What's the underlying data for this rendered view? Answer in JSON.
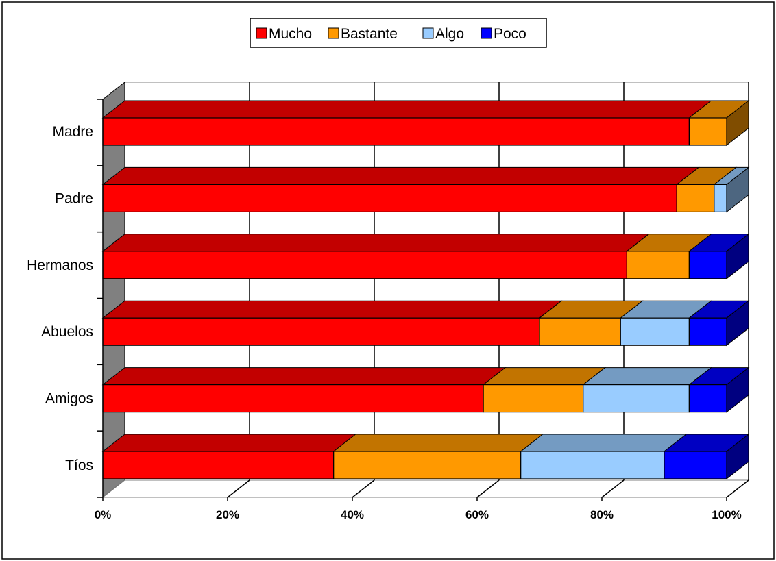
{
  "chart_data": {
    "type": "bar",
    "orientation": "horizontal",
    "stacked": "percent",
    "three_d": true,
    "categories": [
      "Madre",
      "Padre",
      "Hermanos",
      "Abuelos",
      "Amigos",
      "Tíos"
    ],
    "series": [
      {
        "name": "Mucho",
        "values": [
          94,
          92,
          84,
          70,
          61,
          37
        ],
        "color": "#FF0000"
      },
      {
        "name": "Bastante",
        "values": [
          6,
          6,
          10,
          13,
          16,
          30
        ],
        "color": "#FF9900"
      },
      {
        "name": "Algo",
        "values": [
          0,
          2,
          0,
          11,
          17,
          23
        ],
        "color": "#99CCFF"
      },
      {
        "name": "Poco",
        "values": [
          0,
          0,
          6,
          6,
          6,
          10
        ],
        "color": "#0000FF"
      }
    ],
    "xaxis": {
      "ticks": [
        0,
        20,
        40,
        60,
        80,
        100
      ],
      "tick_labels": [
        "0%",
        "20%",
        "40%",
        "60%",
        "80%",
        "100%"
      ],
      "xlim": [
        0,
        100
      ]
    },
    "grid": true,
    "legend": {
      "position": "top-center",
      "labels": [
        "Mucho",
        "Bastante",
        "Algo",
        "Poco"
      ]
    }
  }
}
